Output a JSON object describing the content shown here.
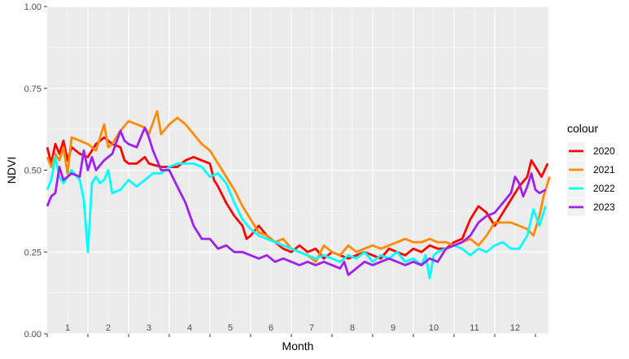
{
  "chart_data": {
    "type": "line",
    "xlabel": "Month",
    "ylabel": "NDVI",
    "ylim": [
      0,
      1
    ],
    "xlim": [
      0,
      12
    ],
    "grid": true,
    "panel_background": "#ebebeb",
    "legend_title": "colour",
    "legend_position": "right",
    "x_tick_labels": [
      "1",
      "2",
      "3",
      "4",
      "5",
      "6",
      "7",
      "8",
      "9",
      "10",
      "11",
      "12"
    ],
    "y_tick_labels": [
      "0.00",
      "0.25",
      "0.50",
      "0.75",
      "1.00"
    ],
    "y_ticks": [
      0,
      0.25,
      0.5,
      0.75,
      1
    ],
    "series": [
      {
        "name": "2020",
        "color": "#ff0000",
        "points": [
          [
            0.0,
            0.57
          ],
          [
            0.1,
            0.52
          ],
          [
            0.2,
            0.58
          ],
          [
            0.3,
            0.55
          ],
          [
            0.4,
            0.59
          ],
          [
            0.5,
            0.53
          ],
          [
            0.6,
            0.57
          ],
          [
            0.8,
            0.55
          ],
          [
            1.0,
            0.54
          ],
          [
            1.2,
            0.58
          ],
          [
            1.4,
            0.6
          ],
          [
            1.6,
            0.58
          ],
          [
            1.8,
            0.57
          ],
          [
            1.9,
            0.53
          ],
          [
            2.0,
            0.52
          ],
          [
            2.2,
            0.52
          ],
          [
            2.4,
            0.54
          ],
          [
            2.5,
            0.52
          ],
          [
            2.8,
            0.51
          ],
          [
            3.0,
            0.51
          ],
          [
            3.2,
            0.51
          ],
          [
            3.4,
            0.53
          ],
          [
            3.6,
            0.54
          ],
          [
            3.8,
            0.53
          ],
          [
            4.0,
            0.52
          ],
          [
            4.1,
            0.47
          ],
          [
            4.2,
            0.45
          ],
          [
            4.4,
            0.4
          ],
          [
            4.6,
            0.36
          ],
          [
            4.8,
            0.33
          ],
          [
            4.9,
            0.29
          ],
          [
            5.0,
            0.3
          ],
          [
            5.2,
            0.33
          ],
          [
            5.4,
            0.3
          ],
          [
            5.6,
            0.28
          ],
          [
            5.8,
            0.26
          ],
          [
            6.0,
            0.25
          ],
          [
            6.2,
            0.27
          ],
          [
            6.4,
            0.25
          ],
          [
            6.6,
            0.26
          ],
          [
            6.8,
            0.23
          ],
          [
            7.0,
            0.25
          ],
          [
            7.2,
            0.24
          ],
          [
            7.4,
            0.23
          ],
          [
            7.6,
            0.24
          ],
          [
            7.8,
            0.25
          ],
          [
            8.0,
            0.24
          ],
          [
            8.2,
            0.23
          ],
          [
            8.4,
            0.26
          ],
          [
            8.6,
            0.25
          ],
          [
            8.8,
            0.24
          ],
          [
            9.0,
            0.26
          ],
          [
            9.2,
            0.25
          ],
          [
            9.4,
            0.27
          ],
          [
            9.6,
            0.26
          ],
          [
            9.8,
            0.26
          ],
          [
            10.0,
            0.28
          ],
          [
            10.2,
            0.29
          ],
          [
            10.4,
            0.35
          ],
          [
            10.6,
            0.39
          ],
          [
            10.8,
            0.37
          ],
          [
            11.0,
            0.33
          ],
          [
            11.2,
            0.37
          ],
          [
            11.4,
            0.41
          ],
          [
            11.6,
            0.45
          ],
          [
            11.8,
            0.48
          ],
          [
            11.9,
            0.53
          ],
          [
            12.0,
            0.51
          ],
          [
            12.15,
            0.48
          ],
          [
            12.3,
            0.52
          ]
        ]
      },
      {
        "name": "2021",
        "color": "#ff8c00",
        "points": [
          [
            0.0,
            0.54
          ],
          [
            0.1,
            0.51
          ],
          [
            0.2,
            0.55
          ],
          [
            0.3,
            0.53
          ],
          [
            0.4,
            0.57
          ],
          [
            0.5,
            0.49
          ],
          [
            0.6,
            0.6
          ],
          [
            0.8,
            0.59
          ],
          [
            1.0,
            0.58
          ],
          [
            1.2,
            0.56
          ],
          [
            1.4,
            0.64
          ],
          [
            1.5,
            0.57
          ],
          [
            1.6,
            0.58
          ],
          [
            1.8,
            0.62
          ],
          [
            2.0,
            0.65
          ],
          [
            2.2,
            0.64
          ],
          [
            2.4,
            0.63
          ],
          [
            2.5,
            0.61
          ],
          [
            2.7,
            0.68
          ],
          [
            2.8,
            0.61
          ],
          [
            3.0,
            0.64
          ],
          [
            3.2,
            0.66
          ],
          [
            3.4,
            0.64
          ],
          [
            3.6,
            0.61
          ],
          [
            3.8,
            0.58
          ],
          [
            4.0,
            0.56
          ],
          [
            4.2,
            0.52
          ],
          [
            4.4,
            0.48
          ],
          [
            4.6,
            0.44
          ],
          [
            4.8,
            0.39
          ],
          [
            5.0,
            0.35
          ],
          [
            5.2,
            0.31
          ],
          [
            5.4,
            0.3
          ],
          [
            5.6,
            0.28
          ],
          [
            5.8,
            0.29
          ],
          [
            6.0,
            0.26
          ],
          [
            6.2,
            0.25
          ],
          [
            6.4,
            0.24
          ],
          [
            6.6,
            0.22
          ],
          [
            6.8,
            0.27
          ],
          [
            7.0,
            0.25
          ],
          [
            7.2,
            0.24
          ],
          [
            7.4,
            0.27
          ],
          [
            7.6,
            0.25
          ],
          [
            7.8,
            0.26
          ],
          [
            8.0,
            0.27
          ],
          [
            8.2,
            0.26
          ],
          [
            8.4,
            0.27
          ],
          [
            8.6,
            0.28
          ],
          [
            8.8,
            0.29
          ],
          [
            9.0,
            0.28
          ],
          [
            9.2,
            0.28
          ],
          [
            9.4,
            0.29
          ],
          [
            9.6,
            0.28
          ],
          [
            9.8,
            0.28
          ],
          [
            10.0,
            0.27
          ],
          [
            10.2,
            0.28
          ],
          [
            10.4,
            0.29
          ],
          [
            10.6,
            0.27
          ],
          [
            10.8,
            0.3
          ],
          [
            11.0,
            0.34
          ],
          [
            11.2,
            0.34
          ],
          [
            11.4,
            0.34
          ],
          [
            11.6,
            0.33
          ],
          [
            11.8,
            0.32
          ],
          [
            11.95,
            0.3
          ],
          [
            12.1,
            0.36
          ],
          [
            12.2,
            0.42
          ],
          [
            12.35,
            0.48
          ]
        ]
      },
      {
        "name": "2022",
        "color": "#00ffff",
        "points": [
          [
            0.0,
            0.44
          ],
          [
            0.1,
            0.47
          ],
          [
            0.2,
            0.54
          ],
          [
            0.3,
            0.48
          ],
          [
            0.4,
            0.46
          ],
          [
            0.5,
            0.48
          ],
          [
            0.6,
            0.5
          ],
          [
            0.8,
            0.47
          ],
          [
            0.9,
            0.41
          ],
          [
            1.0,
            0.25
          ],
          [
            1.1,
            0.46
          ],
          [
            1.2,
            0.48
          ],
          [
            1.3,
            0.46
          ],
          [
            1.4,
            0.47
          ],
          [
            1.5,
            0.5
          ],
          [
            1.6,
            0.43
          ],
          [
            1.8,
            0.44
          ],
          [
            2.0,
            0.47
          ],
          [
            2.2,
            0.45
          ],
          [
            2.4,
            0.47
          ],
          [
            2.6,
            0.49
          ],
          [
            2.8,
            0.49
          ],
          [
            3.0,
            0.51
          ],
          [
            3.2,
            0.52
          ],
          [
            3.4,
            0.52
          ],
          [
            3.6,
            0.52
          ],
          [
            3.8,
            0.51
          ],
          [
            4.0,
            0.48
          ],
          [
            4.2,
            0.49
          ],
          [
            4.4,
            0.46
          ],
          [
            4.6,
            0.4
          ],
          [
            4.8,
            0.35
          ],
          [
            5.0,
            0.32
          ],
          [
            5.2,
            0.3
          ],
          [
            5.4,
            0.29
          ],
          [
            5.6,
            0.28
          ],
          [
            5.8,
            0.27
          ],
          [
            6.0,
            0.26
          ],
          [
            6.2,
            0.25
          ],
          [
            6.4,
            0.24
          ],
          [
            6.6,
            0.23
          ],
          [
            6.8,
            0.24
          ],
          [
            7.0,
            0.23
          ],
          [
            7.2,
            0.22
          ],
          [
            7.4,
            0.24
          ],
          [
            7.6,
            0.23
          ],
          [
            7.8,
            0.25
          ],
          [
            8.0,
            0.22
          ],
          [
            8.2,
            0.24
          ],
          [
            8.4,
            0.23
          ],
          [
            8.6,
            0.25
          ],
          [
            8.8,
            0.22
          ],
          [
            9.0,
            0.23
          ],
          [
            9.2,
            0.21
          ],
          [
            9.3,
            0.24
          ],
          [
            9.4,
            0.17
          ],
          [
            9.5,
            0.24
          ],
          [
            9.6,
            0.25
          ],
          [
            9.8,
            0.26
          ],
          [
            10.0,
            0.27
          ],
          [
            10.2,
            0.26
          ],
          [
            10.4,
            0.24
          ],
          [
            10.6,
            0.26
          ],
          [
            10.8,
            0.25
          ],
          [
            11.0,
            0.27
          ],
          [
            11.2,
            0.28
          ],
          [
            11.4,
            0.26
          ],
          [
            11.6,
            0.26
          ],
          [
            11.8,
            0.3
          ],
          [
            11.95,
            0.38
          ],
          [
            12.1,
            0.33
          ],
          [
            12.25,
            0.39
          ]
        ]
      },
      {
        "name": "2023",
        "color": "#a020f0",
        "points": [
          [
            0.0,
            0.39
          ],
          [
            0.1,
            0.42
          ],
          [
            0.2,
            0.43
          ],
          [
            0.3,
            0.51
          ],
          [
            0.4,
            0.47
          ],
          [
            0.5,
            0.48
          ],
          [
            0.6,
            0.49
          ],
          [
            0.8,
            0.48
          ],
          [
            0.9,
            0.56
          ],
          [
            1.0,
            0.5
          ],
          [
            1.1,
            0.54
          ],
          [
            1.2,
            0.5
          ],
          [
            1.4,
            0.53
          ],
          [
            1.6,
            0.55
          ],
          [
            1.8,
            0.62
          ],
          [
            1.9,
            0.59
          ],
          [
            2.0,
            0.58
          ],
          [
            2.2,
            0.57
          ],
          [
            2.4,
            0.63
          ],
          [
            2.5,
            0.6
          ],
          [
            2.6,
            0.56
          ],
          [
            2.8,
            0.5
          ],
          [
            3.0,
            0.5
          ],
          [
            3.2,
            0.45
          ],
          [
            3.4,
            0.4
          ],
          [
            3.6,
            0.33
          ],
          [
            3.8,
            0.29
          ],
          [
            4.0,
            0.29
          ],
          [
            4.2,
            0.26
          ],
          [
            4.4,
            0.27
          ],
          [
            4.6,
            0.25
          ],
          [
            4.8,
            0.25
          ],
          [
            5.0,
            0.24
          ],
          [
            5.2,
            0.23
          ],
          [
            5.4,
            0.24
          ],
          [
            5.6,
            0.22
          ],
          [
            5.8,
            0.23
          ],
          [
            6.0,
            0.22
          ],
          [
            6.2,
            0.21
          ],
          [
            6.4,
            0.22
          ],
          [
            6.6,
            0.21
          ],
          [
            6.8,
            0.22
          ],
          [
            7.0,
            0.21
          ],
          [
            7.2,
            0.2
          ],
          [
            7.3,
            0.22
          ],
          [
            7.4,
            0.18
          ],
          [
            7.6,
            0.2
          ],
          [
            7.8,
            0.22
          ],
          [
            8.0,
            0.21
          ],
          [
            8.2,
            0.22
          ],
          [
            8.4,
            0.23
          ],
          [
            8.6,
            0.22
          ],
          [
            8.8,
            0.21
          ],
          [
            9.0,
            0.22
          ],
          [
            9.2,
            0.21
          ],
          [
            9.4,
            0.23
          ],
          [
            9.6,
            0.22
          ],
          [
            9.8,
            0.26
          ],
          [
            10.0,
            0.27
          ],
          [
            10.2,
            0.28
          ],
          [
            10.4,
            0.3
          ],
          [
            10.6,
            0.34
          ],
          [
            10.8,
            0.36
          ],
          [
            11.0,
            0.37
          ],
          [
            11.2,
            0.4
          ],
          [
            11.4,
            0.43
          ],
          [
            11.5,
            0.48
          ],
          [
            11.6,
            0.46
          ],
          [
            11.7,
            0.42
          ],
          [
            11.8,
            0.45
          ],
          [
            11.9,
            0.49
          ],
          [
            12.0,
            0.44
          ],
          [
            12.1,
            0.43
          ],
          [
            12.25,
            0.44
          ]
        ]
      }
    ]
  }
}
